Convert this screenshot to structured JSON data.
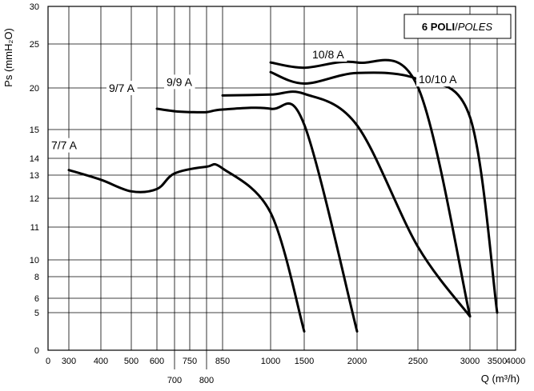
{
  "chart_data": {
    "type": "line",
    "title": "",
    "annotation": {
      "bold": "6 POLI",
      "separator": "/",
      "italic": "POLES"
    },
    "xlabel": "Q (m³/h)",
    "ylabel": "Ps (mmH₂O)",
    "x_ticks_top": [
      "0",
      "300",
      "400",
      "500",
      "600",
      "750",
      "850",
      "1000",
      "1500",
      "2000",
      "2500",
      "3000",
      "3500",
      "4000"
    ],
    "x_ticks_bottom": [
      "700",
      "800"
    ],
    "y_ticks": [
      "0",
      "5",
      "6",
      "8",
      "10",
      "11",
      "12",
      "13",
      "14",
      "15",
      "20",
      "25",
      "30"
    ],
    "grid": true,
    "series": [
      {
        "name": "7/7 A",
        "x": [
          300,
          400,
          500,
          600,
          700,
          800,
          850,
          1000,
          1500
        ],
        "y": [
          13.3,
          12.8,
          12.3,
          12.4,
          13.1,
          13.5,
          13.4,
          11.5,
          2.5
        ]
      },
      {
        "name": "9/7 A",
        "x": [
          600,
          700,
          750,
          800,
          850,
          1000,
          1500,
          2000
        ],
        "y": [
          17.5,
          17.2,
          17.1,
          17.1,
          17.4,
          17.5,
          15.6,
          2.5
        ]
      },
      {
        "name": "9/9 A",
        "x": [
          850,
          1000,
          1500,
          2000,
          2500,
          3000
        ],
        "y": [
          19.1,
          19.2,
          19.3,
          15.5,
          10.4,
          4.5
        ]
      },
      {
        "name": "10/8 A",
        "x": [
          1000,
          1500,
          2000,
          2500,
          3000
        ],
        "y": [
          22.9,
          22.3,
          22.9,
          20.1,
          4.5
        ]
      },
      {
        "name": "10/10 A",
        "x": [
          1000,
          1500,
          2000,
          2500,
          3000,
          3500
        ],
        "y": [
          21.8,
          20.5,
          21.7,
          21.0,
          16.5,
          5.0
        ]
      }
    ]
  }
}
